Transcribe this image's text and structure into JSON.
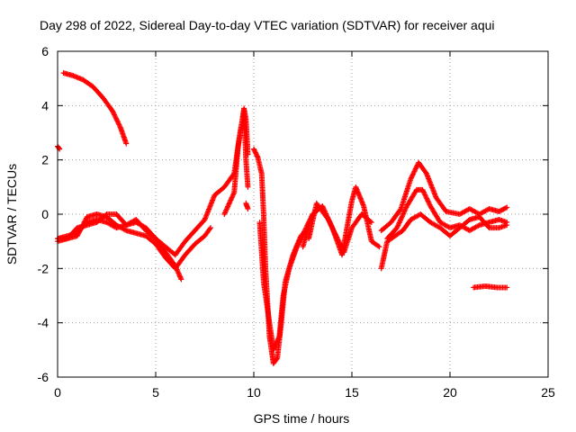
{
  "chart_data": {
    "type": "scatter",
    "title": "Day 298 of 2022, Sidereal Day-to-day VTEC variation (SDTVAR) for receiver aqui",
    "xlabel": "GPS time / hours",
    "ylabel": "SDTVAR / TECUs",
    "xlim": [
      0,
      25
    ],
    "ylim": [
      -6,
      6
    ],
    "xticks": [
      0,
      5,
      10,
      15,
      20,
      25
    ],
    "yticks": [
      -6,
      -4,
      -2,
      0,
      2,
      4,
      6
    ],
    "grid": true,
    "marker": "+",
    "color": "#ff0000",
    "series": [
      {
        "name": "s1",
        "points": [
          [
            0.0,
            2.5
          ],
          [
            0.1,
            2.4
          ]
        ]
      },
      {
        "name": "s2",
        "points": [
          [
            0.3,
            5.2
          ],
          [
            0.8,
            5.1
          ],
          [
            1.3,
            4.95
          ],
          [
            1.8,
            4.7
          ],
          [
            2.3,
            4.3
          ],
          [
            2.8,
            3.8
          ],
          [
            3.2,
            3.2
          ],
          [
            3.5,
            2.6
          ]
        ]
      },
      {
        "name": "s3",
        "points": [
          [
            0.0,
            -0.9
          ],
          [
            0.5,
            -0.8
          ],
          [
            1.0,
            -0.7
          ],
          [
            1.5,
            -0.3
          ],
          [
            2.0,
            -0.2
          ],
          [
            2.5,
            -0.3
          ],
          [
            3.0,
            -0.5
          ],
          [
            3.5,
            -0.4
          ],
          [
            4.0,
            -0.3
          ],
          [
            4.5,
            -0.5
          ],
          [
            5.0,
            -0.9
          ],
          [
            5.5,
            -1.4
          ],
          [
            6.0,
            -1.9
          ],
          [
            6.3,
            -2.4
          ]
        ]
      },
      {
        "name": "s4",
        "points": [
          [
            0.0,
            -0.9
          ],
          [
            0.5,
            -0.9
          ],
          [
            1.0,
            -0.8
          ],
          [
            1.5,
            -0.1
          ],
          [
            2.0,
            0.0
          ],
          [
            2.5,
            -0.1
          ],
          [
            3.0,
            -0.4
          ],
          [
            3.5,
            -0.6
          ],
          [
            4.0,
            -0.7
          ],
          [
            4.5,
            -0.8
          ],
          [
            5.0,
            -1.1
          ],
          [
            5.5,
            -1.6
          ],
          [
            6.0,
            -2.0
          ],
          [
            6.5,
            -1.5
          ],
          [
            7.0,
            -1.1
          ],
          [
            7.5,
            -0.8
          ],
          [
            7.8,
            -0.5
          ]
        ]
      },
      {
        "name": "s5",
        "points": [
          [
            0.0,
            -1.0
          ],
          [
            0.5,
            -0.9
          ],
          [
            1.0,
            -0.5
          ],
          [
            1.5,
            -0.4
          ],
          [
            2.0,
            -0.3
          ],
          [
            2.5,
            0.0
          ],
          [
            3.0,
            0.0
          ],
          [
            3.5,
            -0.4
          ],
          [
            4.0,
            -0.2
          ],
          [
            4.5,
            -0.6
          ],
          [
            5.0,
            -0.9
          ],
          [
            5.5,
            -1.2
          ],
          [
            6.0,
            -1.5
          ],
          [
            6.5,
            -1.0
          ],
          [
            7.0,
            -0.6
          ],
          [
            7.5,
            -0.2
          ],
          [
            8.0,
            0.7
          ],
          [
            8.5,
            1.0
          ],
          [
            9.0,
            1.5
          ],
          [
            9.3,
            3.0
          ],
          [
            9.5,
            3.8
          ],
          [
            9.6,
            2.0
          ],
          [
            9.7,
            1.0
          ]
        ]
      },
      {
        "name": "s6",
        "points": [
          [
            8.5,
            0.0
          ],
          [
            9.0,
            0.8
          ],
          [
            9.2,
            2.5
          ],
          [
            9.4,
            3.4
          ],
          [
            9.5,
            3.9
          ],
          [
            9.6,
            3.5
          ],
          [
            9.7,
            2.2
          ]
        ]
      },
      {
        "name": "s7",
        "points": [
          [
            9.6,
            0.4
          ],
          [
            9.7,
            0.2
          ]
        ]
      },
      {
        "name": "s8",
        "points": [
          [
            10.0,
            2.4
          ],
          [
            10.2,
            2.1
          ],
          [
            10.4,
            1.5
          ],
          [
            10.5,
            0.0
          ],
          [
            10.6,
            -2.0
          ],
          [
            10.8,
            -4.5
          ],
          [
            11.0,
            -5.5
          ],
          [
            11.2,
            -5.3
          ],
          [
            11.4,
            -4.0
          ],
          [
            11.6,
            -2.5
          ],
          [
            12.0,
            -1.5
          ],
          [
            12.4,
            -0.8
          ],
          [
            12.8,
            -0.5
          ]
        ]
      },
      {
        "name": "s9",
        "points": [
          [
            10.3,
            -0.3
          ],
          [
            10.5,
            -2.5
          ],
          [
            10.8,
            -4.0
          ],
          [
            11.0,
            -5.0
          ],
          [
            11.3,
            -4.5
          ],
          [
            11.5,
            -3.0
          ],
          [
            11.8,
            -2.0
          ],
          [
            12.2,
            -1.2
          ],
          [
            12.6,
            -0.6
          ],
          [
            13.0,
            0.0
          ]
        ]
      },
      {
        "name": "s10",
        "points": [
          [
            12.5,
            -1.2
          ],
          [
            13.0,
            0.0
          ],
          [
            13.5,
            0.3
          ],
          [
            14.0,
            -0.5
          ],
          [
            14.5,
            -1.5
          ],
          [
            15.0,
            0.5
          ],
          [
            15.2,
            1.0
          ],
          [
            15.6,
            0.3
          ],
          [
            16.0,
            -1.0
          ],
          [
            16.4,
            -1.2
          ]
        ]
      },
      {
        "name": "s11",
        "points": [
          [
            12.8,
            -0.9
          ],
          [
            13.2,
            0.4
          ],
          [
            13.8,
            -0.2
          ],
          [
            14.2,
            -0.8
          ],
          [
            14.6,
            -1.4
          ],
          [
            15.0,
            -0.5
          ],
          [
            15.5,
            0.0
          ],
          [
            16.0,
            -0.3
          ]
        ]
      },
      {
        "name": "s12",
        "points": [
          [
            16.5,
            -0.6
          ],
          [
            17.0,
            -0.3
          ],
          [
            17.5,
            0.2
          ],
          [
            18.0,
            1.3
          ],
          [
            18.4,
            1.9
          ],
          [
            18.8,
            1.5
          ],
          [
            19.3,
            0.6
          ],
          [
            19.8,
            0.1
          ],
          [
            20.5,
            0.0
          ],
          [
            21.0,
            0.2
          ],
          [
            21.5,
            0.0
          ],
          [
            22.0,
            0.2
          ],
          [
            22.5,
            0.1
          ],
          [
            22.9,
            0.25
          ]
        ]
      },
      {
        "name": "s13",
        "points": [
          [
            16.8,
            -0.9
          ],
          [
            17.3,
            -0.5
          ],
          [
            17.8,
            0.3
          ],
          [
            18.3,
            0.9
          ],
          [
            18.6,
            0.9
          ],
          [
            19.0,
            0.3
          ],
          [
            19.5,
            -0.3
          ],
          [
            20.0,
            -0.5
          ],
          [
            20.5,
            -0.4
          ],
          [
            21.0,
            -0.6
          ],
          [
            21.5,
            -0.4
          ],
          [
            22.0,
            -0.3
          ],
          [
            22.5,
            -0.2
          ],
          [
            22.9,
            -0.3
          ]
        ]
      },
      {
        "name": "s14",
        "points": [
          [
            16.5,
            -2.0
          ],
          [
            16.8,
            -1.0
          ],
          [
            17.2,
            -0.8
          ],
          [
            17.6,
            -0.6
          ],
          [
            18.0,
            -0.2
          ],
          [
            18.5,
            0.0
          ],
          [
            19.0,
            -0.3
          ],
          [
            19.5,
            -0.5
          ],
          [
            20.0,
            -0.8
          ],
          [
            20.5,
            -0.5
          ],
          [
            21.0,
            -0.2
          ],
          [
            21.5,
            -0.1
          ],
          [
            22.0,
            -0.5
          ],
          [
            22.5,
            -0.5
          ],
          [
            22.9,
            -0.4
          ]
        ]
      },
      {
        "name": "s15",
        "points": [
          [
            21.2,
            -2.7
          ],
          [
            21.8,
            -2.65
          ],
          [
            22.4,
            -2.7
          ],
          [
            22.9,
            -2.7
          ]
        ]
      }
    ]
  }
}
